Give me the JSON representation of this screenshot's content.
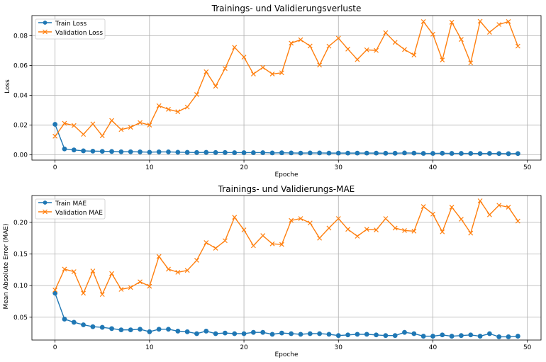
{
  "chart_data": [
    {
      "type": "line",
      "title": "Trainings- und Validierungsverluste",
      "xlabel": "Epoche",
      "ylabel": "Loss",
      "xlim": [
        -2.45,
        51.45
      ],
      "ylim": [
        -0.0035,
        0.0935
      ],
      "xticks": [
        0,
        10,
        20,
        30,
        40,
        50
      ],
      "yticks": [
        0.0,
        0.02,
        0.04,
        0.06,
        0.08
      ],
      "ytick_labels": [
        "0.00",
        "0.02",
        "0.04",
        "0.06",
        "0.08"
      ],
      "grid": true,
      "legend_position": "upper left",
      "x": [
        0,
        1,
        2,
        3,
        4,
        5,
        6,
        7,
        8,
        9,
        10,
        11,
        12,
        13,
        14,
        15,
        16,
        17,
        18,
        19,
        20,
        21,
        22,
        23,
        24,
        25,
        26,
        27,
        28,
        29,
        30,
        31,
        32,
        33,
        34,
        35,
        36,
        37,
        38,
        39,
        40,
        41,
        42,
        43,
        44,
        45,
        46,
        47,
        48,
        49
      ],
      "series": [
        {
          "name": "Train Loss",
          "color": "#1f77b4",
          "marker": "circle",
          "values": [
            0.0205,
            0.004,
            0.0033,
            0.0027,
            0.0025,
            0.0024,
            0.0023,
            0.0021,
            0.0021,
            0.002,
            0.0018,
            0.002,
            0.002,
            0.0018,
            0.0017,
            0.0016,
            0.0017,
            0.0016,
            0.0016,
            0.0015,
            0.0015,
            0.0015,
            0.0015,
            0.0013,
            0.0014,
            0.0013,
            0.0012,
            0.0013,
            0.0013,
            0.0012,
            0.0012,
            0.0012,
            0.0012,
            0.0012,
            0.0012,
            0.0011,
            0.0011,
            0.0013,
            0.0012,
            0.001,
            0.001,
            0.0011,
            0.001,
            0.001,
            0.001,
            0.0009,
            0.001,
            0.0009,
            0.0008,
            0.0009
          ]
        },
        {
          "name": "Validation Loss",
          "color": "#ff7f0e",
          "marker": "x",
          "values": [
            0.0125,
            0.0212,
            0.0197,
            0.0138,
            0.0208,
            0.0128,
            0.0231,
            0.017,
            0.0185,
            0.0217,
            0.02,
            0.033,
            0.0306,
            0.029,
            0.0321,
            0.0405,
            0.0558,
            0.0461,
            0.058,
            0.0722,
            0.0656,
            0.0543,
            0.0587,
            0.0543,
            0.0551,
            0.075,
            0.0773,
            0.0731,
            0.0603,
            0.073,
            0.0783,
            0.071,
            0.064,
            0.0705,
            0.0701,
            0.082,
            0.0755,
            0.0707,
            0.067,
            0.0895,
            0.081,
            0.0637,
            0.089,
            0.0775,
            0.0617,
            0.0897,
            0.0823,
            0.0875,
            0.0895,
            0.073
          ]
        }
      ]
    },
    {
      "type": "line",
      "title": "Trainings- und Validierungs-MAE",
      "xlabel": "Epoche",
      "ylabel": "Mean Absolute Error (MAE)",
      "xlim": [
        -2.45,
        51.45
      ],
      "ylim": [
        0.0139,
        0.2424
      ],
      "xticks": [
        0,
        10,
        20,
        30,
        40,
        50
      ],
      "yticks": [
        0.05,
        0.1,
        0.15,
        0.2
      ],
      "ytick_labels": [
        "0.05",
        "0.10",
        "0.15",
        "0.20"
      ],
      "grid": true,
      "legend_position": "upper left",
      "x": [
        0,
        1,
        2,
        3,
        4,
        5,
        6,
        7,
        8,
        9,
        10,
        11,
        12,
        13,
        14,
        15,
        16,
        17,
        18,
        19,
        20,
        21,
        22,
        23,
        24,
        25,
        26,
        27,
        28,
        29,
        30,
        31,
        32,
        33,
        34,
        35,
        36,
        37,
        38,
        39,
        40,
        41,
        42,
        43,
        44,
        45,
        46,
        47,
        48,
        49
      ],
      "series": [
        {
          "name": "Train MAE",
          "color": "#1f77b4",
          "marker": "circle",
          "values": [
            0.088,
            0.047,
            0.042,
            0.038,
            0.035,
            0.034,
            0.032,
            0.03,
            0.03,
            0.031,
            0.027,
            0.031,
            0.031,
            0.028,
            0.027,
            0.024,
            0.028,
            0.024,
            0.025,
            0.024,
            0.024,
            0.026,
            0.026,
            0.023,
            0.025,
            0.024,
            0.023,
            0.024,
            0.024,
            0.023,
            0.021,
            0.022,
            0.023,
            0.023,
            0.022,
            0.021,
            0.021,
            0.026,
            0.024,
            0.02,
            0.02,
            0.022,
            0.02,
            0.021,
            0.022,
            0.02,
            0.024,
            0.019,
            0.019,
            0.02
          ]
        },
        {
          "name": "Validation MAE",
          "color": "#ff7f0e",
          "marker": "x",
          "values": [
            0.093,
            0.126,
            0.122,
            0.088,
            0.123,
            0.086,
            0.119,
            0.094,
            0.097,
            0.106,
            0.099,
            0.146,
            0.126,
            0.121,
            0.124,
            0.14,
            0.168,
            0.159,
            0.171,
            0.208,
            0.188,
            0.163,
            0.179,
            0.166,
            0.165,
            0.203,
            0.206,
            0.199,
            0.175,
            0.191,
            0.206,
            0.189,
            0.178,
            0.189,
            0.188,
            0.206,
            0.191,
            0.187,
            0.186,
            0.225,
            0.213,
            0.185,
            0.224,
            0.205,
            0.183,
            0.234,
            0.212,
            0.227,
            0.224,
            0.202
          ]
        }
      ]
    }
  ]
}
